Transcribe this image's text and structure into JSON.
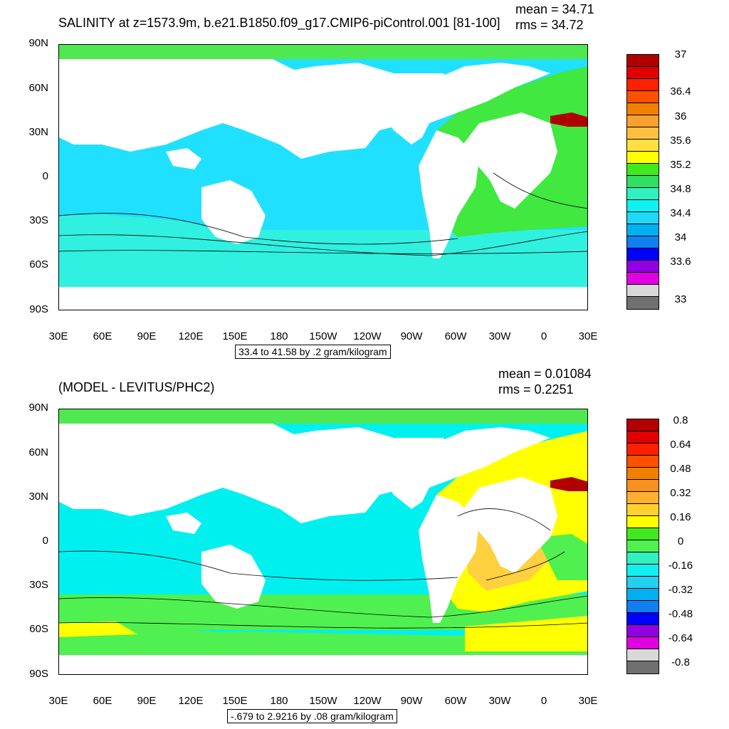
{
  "colors": {
    "ocean_top": "#20e0ff",
    "shelf_top": "#30f0e0",
    "atlantic_top": "#40e840",
    "arctic": "#50e850",
    "land": "#ffffff",
    "med": "#b00000",
    "ocean_bot": "#00f0f0",
    "south_bot": "#50f050",
    "ring_bot": "#ffff00",
    "atl_bot": "#ffd040",
    "atl_bot2": "#ffa030"
  },
  "top": {
    "title": "SALINITY at z=1573.9m, b.e21.B1850.f09_g17.CMIP6-piControl.001 [81-100]",
    "mean_text": "mean = 34.71",
    "rms_text": "rms = 34.72",
    "contour_text": "33.4 to 41.58 by .2 gram/kilogram",
    "lat_labels": [
      "90N",
      "60N",
      "30N",
      "0",
      "30S",
      "60S",
      "90S"
    ],
    "lon_labels": [
      "30E",
      "60E",
      "90E",
      "120E",
      "150E",
      "180",
      "150W",
      "120W",
      "90W",
      "60W",
      "30W",
      "0",
      "30E"
    ],
    "colorbar_colors": [
      "#b00000",
      "#e00000",
      "#ff2000",
      "#ff5000",
      "#f08000",
      "#f8a030",
      "#ffc040",
      "#ffe040",
      "#ffff00",
      "#40e820",
      "#30e060",
      "#30f0c0",
      "#10f0f0",
      "#20d8f8",
      "#00b0f0",
      "#1080f0",
      "#0000ff",
      "#9000e0",
      "#e000e0",
      "#d8d8d8",
      "#707070"
    ],
    "colorbar_labels": [
      "37",
      "36.4",
      "36",
      "35.6",
      "35.2",
      "34.8",
      "34.4",
      "34",
      "33.6",
      "33"
    ]
  },
  "bottom": {
    "title": "(MODEL - LEVITUS/PHC2)",
    "mean_text": "mean = 0.01084",
    "rms_text": "rms = 0.2251",
    "contour_text": "-.679 to 2.9216 by .08 gram/kilogram",
    "lat_labels": [
      "90N",
      "60N",
      "30N",
      "0",
      "30S",
      "60S",
      "90S"
    ],
    "lon_labels": [
      "30E",
      "60E",
      "90E",
      "120E",
      "150E",
      "180",
      "150W",
      "120W",
      "90W",
      "60W",
      "30W",
      "0",
      "30E"
    ],
    "colorbar_colors": [
      "#b00000",
      "#e00000",
      "#ff2000",
      "#ff5000",
      "#f08000",
      "#f89020",
      "#ffb030",
      "#ffd030",
      "#ffff00",
      "#40e820",
      "#50f050",
      "#30f0c0",
      "#10f0f0",
      "#20d0f0",
      "#00b0f0",
      "#1080f0",
      "#0000ff",
      "#9000e0",
      "#e000e0",
      "#d8d8d8",
      "#707070"
    ],
    "colorbar_labels": [
      "0.8",
      "0.64",
      "0.48",
      "0.32",
      "0.16",
      "0",
      "-0.16",
      "-0.32",
      "-0.48",
      "-0.64",
      "-0.8"
    ]
  }
}
